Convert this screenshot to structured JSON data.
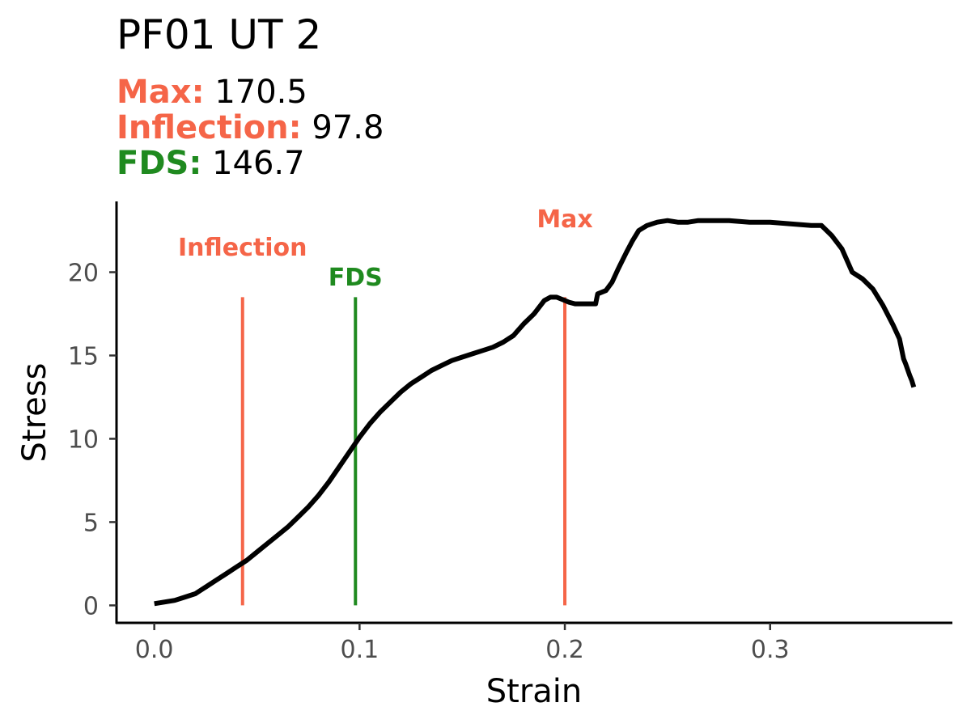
{
  "title": "PF01 UT 2",
  "stats": [
    {
      "label": "Max:",
      "value": "170.5",
      "color": "#f56548"
    },
    {
      "label": "Inflection:",
      "value": "97.8",
      "color": "#f56548"
    },
    {
      "label": "FDS:",
      "value": "146.7",
      "color": "#1f8a1f"
    }
  ],
  "chart_data": {
    "type": "line",
    "title": "PF01 UT 2",
    "xlabel": "Strain",
    "ylabel": "Stress",
    "xlim": [
      -0.018,
      0.388
    ],
    "ylim": [
      -1.0,
      24.2
    ],
    "xticks": [
      0.0,
      0.1,
      0.2,
      0.3
    ],
    "xtick_labels": [
      "0.0",
      "0.1",
      "0.2",
      "0.3"
    ],
    "yticks": [
      0,
      5,
      10,
      15,
      20
    ],
    "ytick_labels": [
      "0",
      "5",
      "10",
      "15",
      "20"
    ],
    "grid": false,
    "line_color": "#000000",
    "series": [
      {
        "x": [
          0.0,
          0.01,
          0.015,
          0.02,
          0.025,
          0.03,
          0.035,
          0.04,
          0.045,
          0.05,
          0.055,
          0.06,
          0.065,
          0.07,
          0.075,
          0.08,
          0.085,
          0.09,
          0.095,
          0.1,
          0.105,
          0.11,
          0.115,
          0.12,
          0.125,
          0.13,
          0.135,
          0.14,
          0.145,
          0.15,
          0.155,
          0.16,
          0.165,
          0.17,
          0.175,
          0.18,
          0.185,
          0.19,
          0.193,
          0.196,
          0.2,
          0.202,
          0.205,
          0.21,
          0.215,
          0.216,
          0.22,
          0.223,
          0.226,
          0.23,
          0.233,
          0.236,
          0.24,
          0.245,
          0.25,
          0.255,
          0.26,
          0.265,
          0.27,
          0.28,
          0.29,
          0.3,
          0.31,
          0.32,
          0.325,
          0.33,
          0.335,
          0.34,
          0.345,
          0.35,
          0.355,
          0.36,
          0.363,
          0.365,
          0.366,
          0.368,
          0.369,
          0.37
        ],
        "y": [
          0.1,
          0.3,
          0.5,
          0.7,
          1.1,
          1.5,
          1.9,
          2.3,
          2.7,
          3.2,
          3.7,
          4.2,
          4.7,
          5.3,
          5.9,
          6.6,
          7.4,
          8.3,
          9.2,
          10.1,
          10.9,
          11.6,
          12.2,
          12.8,
          13.3,
          13.7,
          14.1,
          14.4,
          14.7,
          14.9,
          15.1,
          15.3,
          15.5,
          15.8,
          16.2,
          16.9,
          17.5,
          18.3,
          18.5,
          18.5,
          18.3,
          18.2,
          18.1,
          18.1,
          18.1,
          18.7,
          18.9,
          19.4,
          20.2,
          21.2,
          21.9,
          22.5,
          22.8,
          23.0,
          23.1,
          23.0,
          23.0,
          23.1,
          23.1,
          23.1,
          23.0,
          23.0,
          22.9,
          22.8,
          22.8,
          22.2,
          21.4,
          20.0,
          19.6,
          19.0,
          18.0,
          16.8,
          16.0,
          14.8,
          14.5,
          13.8,
          13.5,
          13.1
        ]
      }
    ],
    "markers": [
      {
        "name": "Inflection",
        "x": 0.043,
        "y_top": 18.5,
        "label_y": 21.0,
        "color": "#f56548"
      },
      {
        "name": "FDS",
        "x": 0.098,
        "y_top": 18.5,
        "label_y": 19.2,
        "color": "#1f8a1f"
      },
      {
        "name": "Max",
        "x": 0.2,
        "y_top": 18.5,
        "label_y": 22.7,
        "color": "#f56548"
      }
    ]
  }
}
